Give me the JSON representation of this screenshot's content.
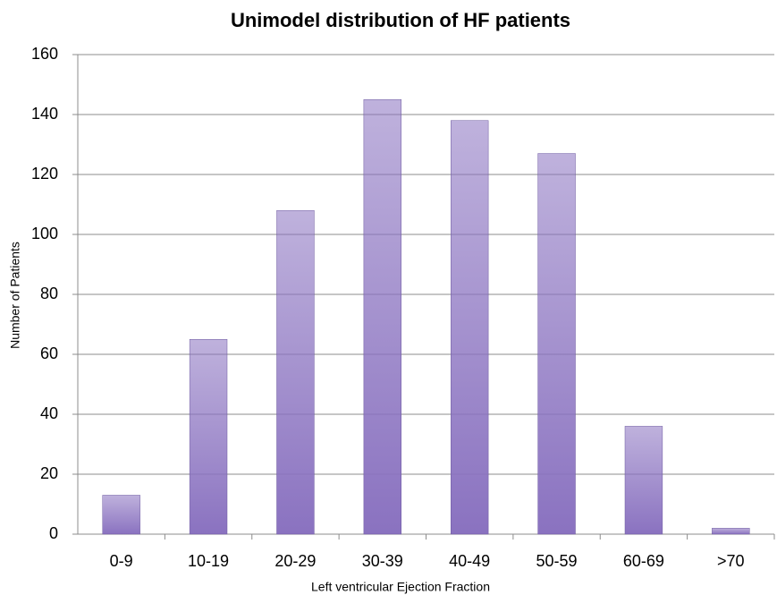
{
  "chart_data": {
    "type": "bar",
    "title": "Unimodel distribution of HF patients",
    "x_label": "Left ventricular Ejection Fraction",
    "y_label": "Number of Patients",
    "categories": [
      "0-9",
      "10-19",
      "20-29",
      "30-39",
      "40-49",
      "50-59",
      "60-69",
      ">70"
    ],
    "values": [
      13,
      65,
      108,
      145,
      138,
      127,
      36,
      2
    ],
    "color": "#8a72c0",
    "ylim": [
      0,
      160
    ],
    "yticks": [
      0,
      20,
      40,
      60,
      80,
      100,
      120,
      140,
      160
    ],
    "grid": true
  }
}
